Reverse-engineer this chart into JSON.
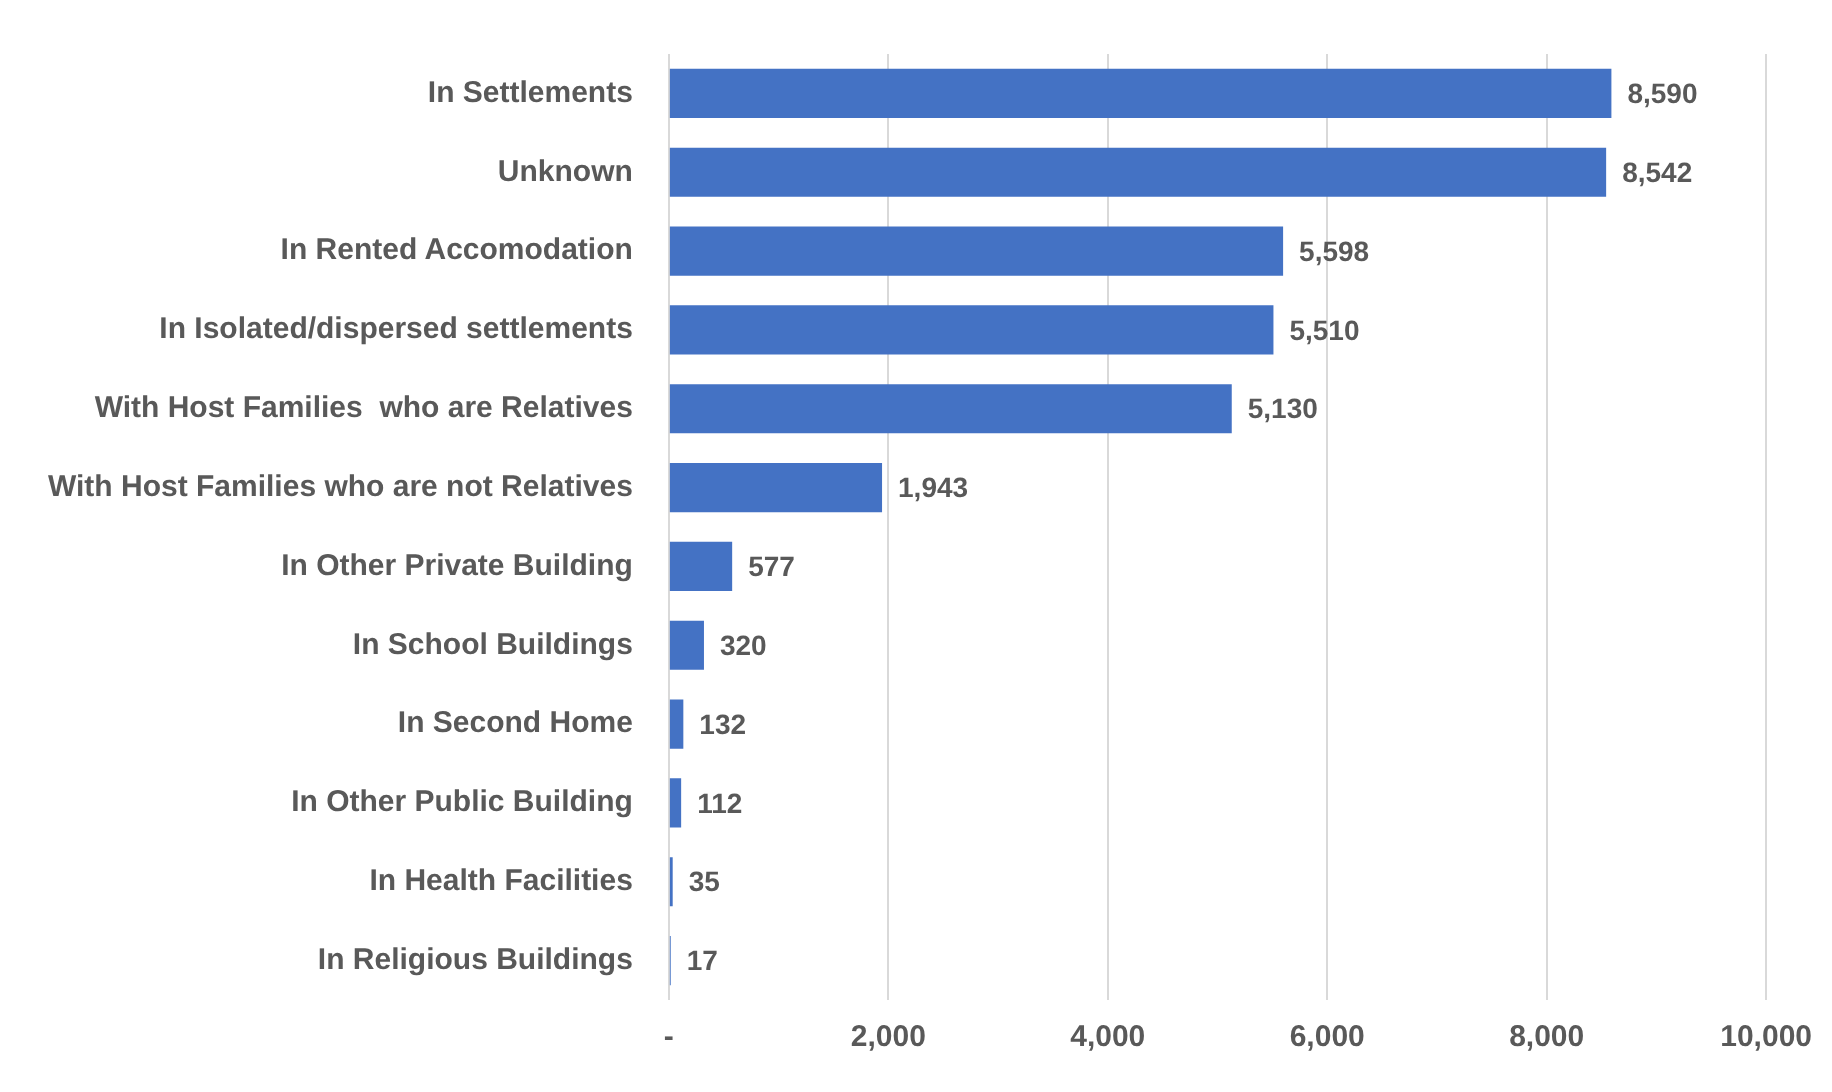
{
  "chart_data": {
    "type": "bar",
    "orientation": "horizontal",
    "categories": [
      "In Settlements",
      "Unknown",
      "In Rented Accomodation",
      "In Isolated/dispersed settlements",
      "With Host Families  who are Relatives",
      "With Host Families who are not Relatives",
      "In Other Private Building",
      "In School Buildings",
      "In Second Home",
      "In Other Public Building",
      "In Health Facilities",
      "In Religious Buildings"
    ],
    "values": [
      8590,
      8542,
      5598,
      5510,
      5130,
      1943,
      577,
      320,
      132,
      112,
      35,
      17
    ],
    "value_labels": [
      "8,590",
      "8,542",
      "5,598",
      "5,510",
      "5,130",
      "1,943",
      "577",
      "320",
      "132",
      "112",
      "35",
      "17"
    ],
    "color": "#4472c4",
    "xlim": [
      0,
      10000
    ],
    "xticks": [
      {
        "value": 0,
        "label": "-"
      },
      {
        "value": 2000,
        "label": "2,000"
      },
      {
        "value": 4000,
        "label": "4,000"
      },
      {
        "value": 6000,
        "label": "6,000"
      },
      {
        "value": 8000,
        "label": "8,000"
      },
      {
        "value": 10000,
        "label": "10,000"
      }
    ],
    "grid": "x",
    "legend": false
  }
}
